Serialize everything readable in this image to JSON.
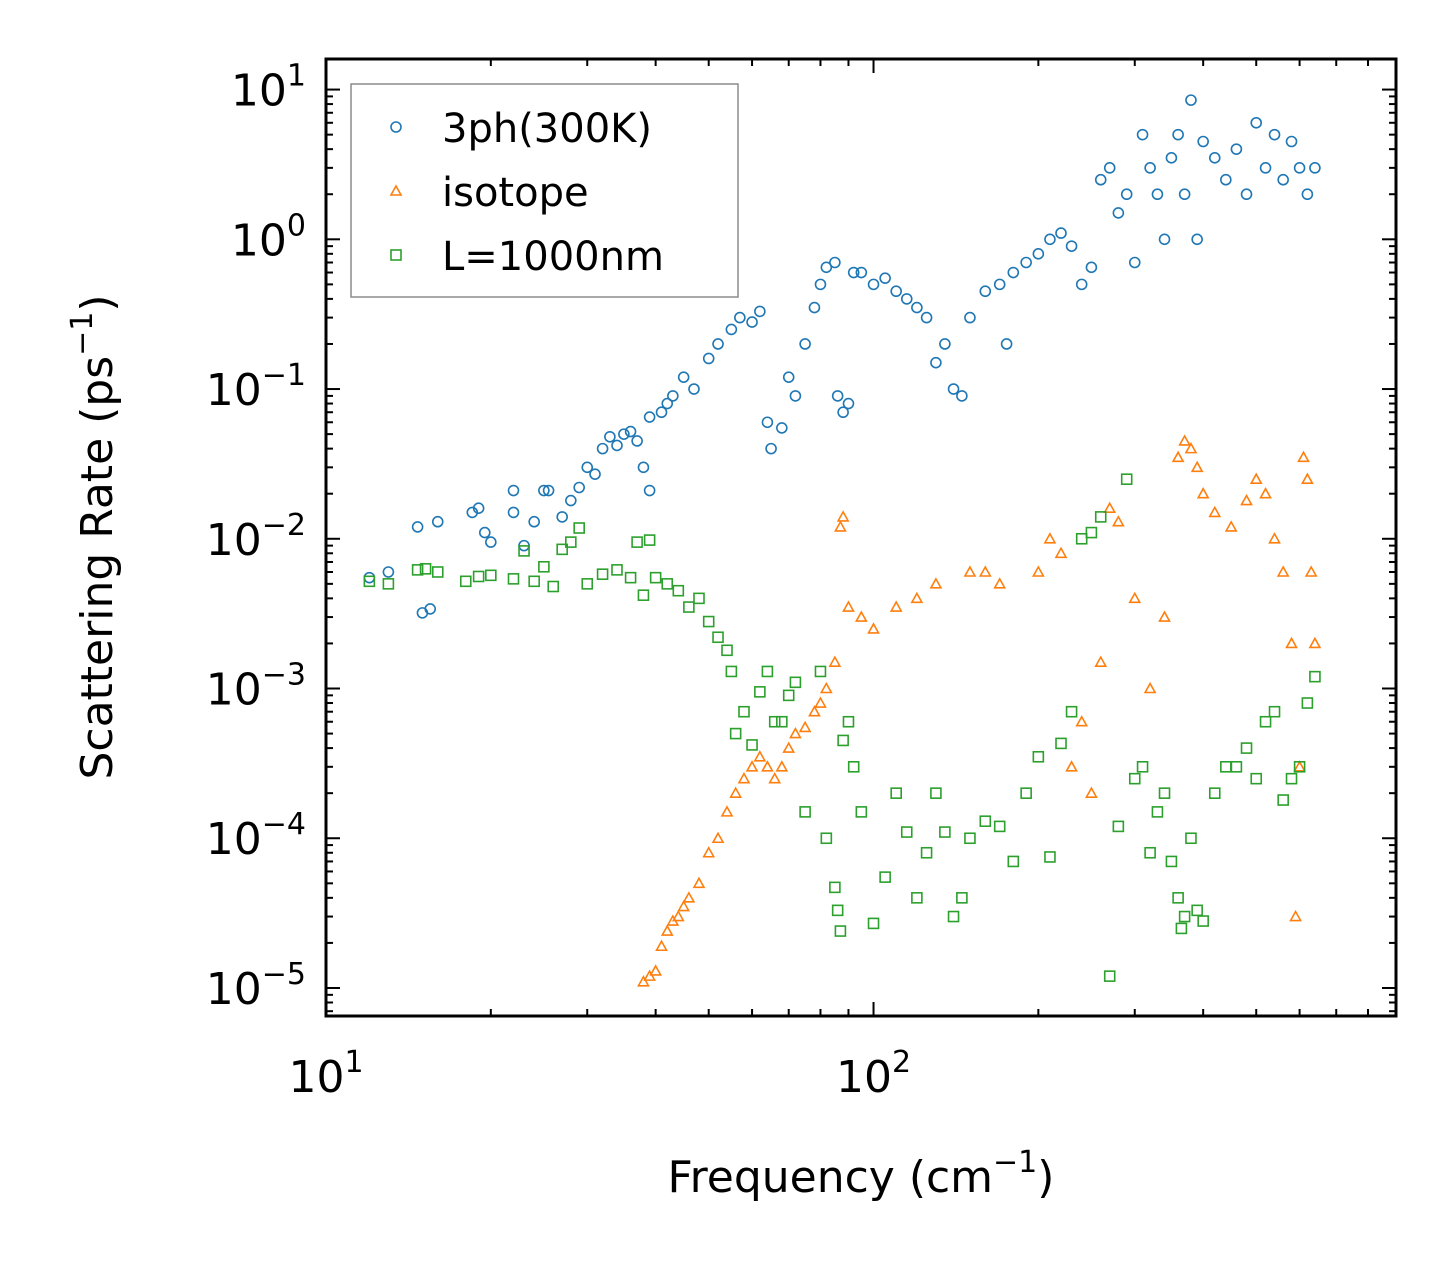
{
  "chart_data": {
    "type": "scatter",
    "xscale": "log",
    "yscale": "log",
    "xlabel": "Frequency (cm",
    "xlabel_exp": "−1",
    "xlabel_close": ")",
    "ylabel": "Scattering Rate (ps",
    "ylabel_exp": "−1",
    "ylabel_close": ")",
    "xlim": [
      10,
      900
    ],
    "ylim": [
      6.5e-06,
      16
    ],
    "x_ticks": [
      {
        "value": 10,
        "base": "10",
        "exp": "1"
      },
      {
        "value": 100,
        "base": "10",
        "exp": "2"
      }
    ],
    "y_ticks": [
      {
        "value": 1e-05,
        "base": "10",
        "exp": "−5"
      },
      {
        "value": 0.0001,
        "base": "10",
        "exp": "−4"
      },
      {
        "value": 0.001,
        "base": "10",
        "exp": "−3"
      },
      {
        "value": 0.01,
        "base": "10",
        "exp": "−2"
      },
      {
        "value": 0.1,
        "base": "10",
        "exp": "−1"
      },
      {
        "value": 1,
        "base": "10",
        "exp": "0"
      },
      {
        "value": 10,
        "base": "10",
        "exp": "1"
      }
    ],
    "legend_position": "top-left",
    "series": [
      {
        "name": "3ph(300K)",
        "marker": "circle",
        "color": "#1f77b4",
        "points": [
          [
            12,
            0.0055
          ],
          [
            13,
            0.006
          ],
          [
            14.7,
            0.012
          ],
          [
            15,
            0.0032
          ],
          [
            15.5,
            0.0034
          ],
          [
            16,
            0.013
          ],
          [
            18.5,
            0.015
          ],
          [
            19,
            0.016
          ],
          [
            19.5,
            0.011
          ],
          [
            20,
            0.0095
          ],
          [
            22,
            0.021
          ],
          [
            22,
            0.015
          ],
          [
            23,
            0.009
          ],
          [
            24,
            0.013
          ],
          [
            25,
            0.021
          ],
          [
            25.5,
            0.021
          ],
          [
            27,
            0.014
          ],
          [
            28,
            0.018
          ],
          [
            29,
            0.022
          ],
          [
            30,
            0.03
          ],
          [
            31,
            0.027
          ],
          [
            32,
            0.04
          ],
          [
            33,
            0.048
          ],
          [
            34,
            0.042
          ],
          [
            35,
            0.05
          ],
          [
            36,
            0.052
          ],
          [
            37,
            0.045
          ],
          [
            38,
            0.03
          ],
          [
            39,
            0.065
          ],
          [
            39,
            0.021
          ],
          [
            41,
            0.07
          ],
          [
            42,
            0.08
          ],
          [
            43,
            0.09
          ],
          [
            45,
            0.12
          ],
          [
            47,
            0.1
          ],
          [
            50,
            0.16
          ],
          [
            52,
            0.2
          ],
          [
            55,
            0.25
          ],
          [
            57,
            0.3
          ],
          [
            60,
            0.28
          ],
          [
            62,
            0.33
          ],
          [
            64,
            0.06
          ],
          [
            65,
            0.04
          ],
          [
            68,
            0.055
          ],
          [
            70,
            0.12
          ],
          [
            72,
            0.09
          ],
          [
            75,
            0.2
          ],
          [
            78,
            0.35
          ],
          [
            80,
            0.5
          ],
          [
            82,
            0.65
          ],
          [
            85,
            0.7
          ],
          [
            86,
            0.09
          ],
          [
            88,
            0.07
          ],
          [
            90,
            0.08
          ],
          [
            92,
            0.6
          ],
          [
            95,
            0.6
          ],
          [
            100,
            0.5
          ],
          [
            105,
            0.55
          ],
          [
            110,
            0.45
          ],
          [
            115,
            0.4
          ],
          [
            120,
            0.35
          ],
          [
            125,
            0.3
          ],
          [
            130,
            0.15
          ],
          [
            135,
            0.2
          ],
          [
            140,
            0.1
          ],
          [
            145,
            0.09
          ],
          [
            150,
            0.3
          ],
          [
            160,
            0.45
          ],
          [
            170,
            0.5
          ],
          [
            175,
            0.2
          ],
          [
            180,
            0.6
          ],
          [
            190,
            0.7
          ],
          [
            200,
            0.8
          ],
          [
            210,
            1
          ],
          [
            220,
            1.1
          ],
          [
            230,
            0.9
          ],
          [
            240,
            0.5
          ],
          [
            250,
            0.65
          ],
          [
            260,
            2.5
          ],
          [
            270,
            3
          ],
          [
            280,
            1.5
          ],
          [
            290,
            2
          ],
          [
            300,
            0.7
          ],
          [
            310,
            5
          ],
          [
            320,
            3
          ],
          [
            330,
            2
          ],
          [
            340,
            1
          ],
          [
            350,
            3.5
          ],
          [
            360,
            5
          ],
          [
            370,
            2
          ],
          [
            380,
            8.5
          ],
          [
            390,
            1
          ],
          [
            400,
            4.5
          ],
          [
            420,
            3.5
          ],
          [
            440,
            2.5
          ],
          [
            460,
            4
          ],
          [
            480,
            2
          ],
          [
            500,
            6
          ],
          [
            520,
            3
          ],
          [
            540,
            5
          ],
          [
            560,
            2.5
          ],
          [
            580,
            4.5
          ],
          [
            600,
            3
          ],
          [
            620,
            2
          ],
          [
            640,
            3
          ]
        ]
      },
      {
        "name": "isotope",
        "marker": "triangle",
        "color": "#ff7f0e",
        "points": [
          [
            38,
            1.1e-05
          ],
          [
            39,
            1.2e-05
          ],
          [
            40,
            1.3e-05
          ],
          [
            41,
            1.9e-05
          ],
          [
            42,
            2.4e-05
          ],
          [
            43,
            2.8e-05
          ],
          [
            44,
            3e-05
          ],
          [
            45,
            3.5e-05
          ],
          [
            46,
            4e-05
          ],
          [
            48,
            5e-05
          ],
          [
            50,
            8e-05
          ],
          [
            52,
            0.0001
          ],
          [
            54,
            0.00015
          ],
          [
            56,
            0.0002
          ],
          [
            58,
            0.00025
          ],
          [
            60,
            0.0003
          ],
          [
            62,
            0.00035
          ],
          [
            64,
            0.0003
          ],
          [
            66,
            0.00025
          ],
          [
            68,
            0.0003
          ],
          [
            70,
            0.0004
          ],
          [
            72,
            0.0005
          ],
          [
            75,
            0.00055
          ],
          [
            78,
            0.0007
          ],
          [
            80,
            0.0008
          ],
          [
            82,
            0.001
          ],
          [
            85,
            0.0015
          ],
          [
            87,
            0.012
          ],
          [
            88,
            0.014
          ],
          [
            90,
            0.0035
          ],
          [
            95,
            0.003
          ],
          [
            100,
            0.0025
          ],
          [
            110,
            0.0035
          ],
          [
            120,
            0.004
          ],
          [
            130,
            0.005
          ],
          [
            150,
            0.006
          ],
          [
            160,
            0.006
          ],
          [
            170,
            0.005
          ],
          [
            200,
            0.006
          ],
          [
            210,
            0.01
          ],
          [
            220,
            0.008
          ],
          [
            230,
            0.0003
          ],
          [
            240,
            0.0006
          ],
          [
            250,
            0.0002
          ],
          [
            260,
            0.0015
          ],
          [
            270,
            0.016
          ],
          [
            280,
            0.013
          ],
          [
            300,
            0.004
          ],
          [
            320,
            0.001
          ],
          [
            340,
            0.003
          ],
          [
            360,
            0.035
          ],
          [
            370,
            0.045
          ],
          [
            380,
            0.04
          ],
          [
            390,
            0.03
          ],
          [
            400,
            0.02
          ],
          [
            420,
            0.015
          ],
          [
            450,
            0.012
          ],
          [
            480,
            0.018
          ],
          [
            500,
            0.025
          ],
          [
            520,
            0.02
          ],
          [
            540,
            0.01
          ],
          [
            560,
            0.006
          ],
          [
            580,
            0.002
          ],
          [
            590,
            3e-05
          ],
          [
            600,
            0.0003
          ],
          [
            610,
            0.035
          ],
          [
            620,
            0.025
          ],
          [
            630,
            0.006
          ],
          [
            640,
            0.002
          ]
        ]
      },
      {
        "name": "L=1000nm",
        "marker": "square",
        "color": "#2ca02c",
        "points": [
          [
            12,
            0.0052
          ],
          [
            13,
            0.005
          ],
          [
            14.7,
            0.0062
          ],
          [
            15.2,
            0.0063
          ],
          [
            16,
            0.006
          ],
          [
            18,
            0.0052
          ],
          [
            19,
            0.0056
          ],
          [
            20,
            0.0057
          ],
          [
            22,
            0.0054
          ],
          [
            23,
            0.0083
          ],
          [
            24,
            0.0052
          ],
          [
            25,
            0.0065
          ],
          [
            26,
            0.0048
          ],
          [
            27,
            0.0085
          ],
          [
            28,
            0.0095
          ],
          [
            29,
            0.0118
          ],
          [
            30,
            0.005
          ],
          [
            32,
            0.0058
          ],
          [
            34,
            0.0062
          ],
          [
            36,
            0.0055
          ],
          [
            37,
            0.0095
          ],
          [
            38,
            0.0042
          ],
          [
            39,
            0.0098
          ],
          [
            40,
            0.0055
          ],
          [
            42,
            0.005
          ],
          [
            44,
            0.0045
          ],
          [
            46,
            0.0035
          ],
          [
            48,
            0.004
          ],
          [
            50,
            0.0028
          ],
          [
            52,
            0.0022
          ],
          [
            54,
            0.0018
          ],
          [
            55,
            0.0013
          ],
          [
            56,
            0.0005
          ],
          [
            58,
            0.0007
          ],
          [
            60,
            0.00042
          ],
          [
            62,
            0.00095
          ],
          [
            64,
            0.0013
          ],
          [
            66,
            0.0006
          ],
          [
            68,
            0.0006
          ],
          [
            70,
            0.0009
          ],
          [
            72,
            0.0011
          ],
          [
            75,
            0.00015
          ],
          [
            80,
            0.0013
          ],
          [
            82,
            0.0001
          ],
          [
            85,
            4.7e-05
          ],
          [
            86,
            3.3e-05
          ],
          [
            87,
            2.4e-05
          ],
          [
            88,
            0.00045
          ],
          [
            90,
            0.0006
          ],
          [
            92,
            0.0003
          ],
          [
            95,
            0.00015
          ],
          [
            100,
            2.7e-05
          ],
          [
            105,
            5.5e-05
          ],
          [
            110,
            0.0002
          ],
          [
            115,
            0.00011
          ],
          [
            120,
            4e-05
          ],
          [
            125,
            8e-05
          ],
          [
            130,
            0.0002
          ],
          [
            135,
            0.00011
          ],
          [
            140,
            3e-05
          ],
          [
            145,
            4e-05
          ],
          [
            150,
            0.0001
          ],
          [
            160,
            0.00013
          ],
          [
            170,
            0.00012
          ],
          [
            180,
            7e-05
          ],
          [
            190,
            0.0002
          ],
          [
            200,
            0.00035
          ],
          [
            210,
            7.5e-05
          ],
          [
            220,
            0.00043
          ],
          [
            230,
            0.0007
          ],
          [
            240,
            0.01
          ],
          [
            250,
            0.011
          ],
          [
            260,
            0.014
          ],
          [
            270,
            1.2e-05
          ],
          [
            280,
            0.00012
          ],
          [
            290,
            0.025
          ],
          [
            300,
            0.00025
          ],
          [
            310,
            0.0003
          ],
          [
            320,
            8e-05
          ],
          [
            330,
            0.00015
          ],
          [
            340,
            0.0002
          ],
          [
            350,
            7e-05
          ],
          [
            360,
            4e-05
          ],
          [
            365,
            2.5e-05
          ],
          [
            370,
            3e-05
          ],
          [
            380,
            0.0001
          ],
          [
            390,
            3.3e-05
          ],
          [
            400,
            2.8e-05
          ],
          [
            420,
            0.0002
          ],
          [
            440,
            0.0003
          ],
          [
            460,
            0.0003
          ],
          [
            480,
            0.0004
          ],
          [
            500,
            0.00025
          ],
          [
            520,
            0.0006
          ],
          [
            540,
            0.0007
          ],
          [
            560,
            0.00018
          ],
          [
            580,
            0.00025
          ],
          [
            600,
            0.0003
          ],
          [
            620,
            0.0008
          ],
          [
            640,
            0.0012
          ]
        ]
      }
    ]
  }
}
